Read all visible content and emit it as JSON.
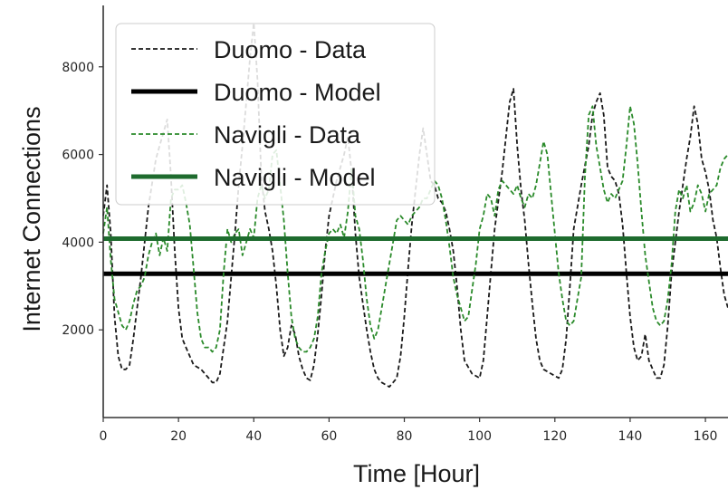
{
  "chart_data": {
    "type": "line",
    "xlabel": "Time [Hour]",
    "ylabel": "Internet Connections",
    "xlim": [
      0,
      166
    ],
    "ylim": [
      0,
      9400
    ],
    "xticks": [
      0,
      20,
      40,
      60,
      80,
      100,
      120,
      140,
      160
    ],
    "yticks": [
      2000,
      4000,
      6000,
      8000
    ],
    "grid": false,
    "legend_position": "top-left",
    "colors": {
      "duomo": "#1a1a1a",
      "navigli": "#2a8a2a",
      "navigli_model": "#1e6b2e"
    },
    "series": [
      {
        "name": "Duomo - Data",
        "style": "dashed",
        "color": "#1a1a1a",
        "points": [
          [
            0,
            4600
          ],
          [
            1,
            5300
          ],
          [
            2,
            4200
          ],
          [
            3,
            2300
          ],
          [
            4,
            1400
          ],
          [
            5,
            1100
          ],
          [
            6,
            1100
          ],
          [
            7,
            1200
          ],
          [
            8,
            1800
          ],
          [
            10,
            3200
          ],
          [
            12,
            4800
          ],
          [
            14,
            5900
          ],
          [
            15,
            6200
          ],
          [
            17,
            6800
          ],
          [
            18,
            5500
          ],
          [
            19,
            3800
          ],
          [
            20,
            2500
          ],
          [
            21,
            1800
          ],
          [
            22,
            1600
          ],
          [
            24,
            1200
          ],
          [
            26,
            1100
          ],
          [
            28,
            900
          ],
          [
            29,
            800
          ],
          [
            30,
            800
          ],
          [
            31,
            1000
          ],
          [
            33,
            2200
          ],
          [
            34,
            3200
          ],
          [
            35,
            4200
          ],
          [
            36,
            5300
          ],
          [
            37,
            6200
          ],
          [
            38,
            7200
          ],
          [
            39,
            8200
          ],
          [
            40,
            9000
          ],
          [
            41,
            7700
          ],
          [
            42,
            5500
          ],
          [
            43,
            4700
          ],
          [
            44,
            4300
          ],
          [
            45,
            3800
          ],
          [
            46,
            3000
          ],
          [
            47,
            2000
          ],
          [
            48,
            1400
          ],
          [
            49,
            1600
          ],
          [
            50,
            2100
          ],
          [
            51,
            1900
          ],
          [
            52,
            1400
          ],
          [
            53,
            1100
          ],
          [
            54,
            900
          ],
          [
            55,
            850
          ],
          [
            56,
            1200
          ],
          [
            57,
            1900
          ],
          [
            58,
            2800
          ],
          [
            59,
            3800
          ],
          [
            60,
            4600
          ],
          [
            62,
            5400
          ],
          [
            64,
            6000
          ],
          [
            65,
            6400
          ],
          [
            66,
            5600
          ],
          [
            67,
            4200
          ],
          [
            68,
            3200
          ],
          [
            69,
            2600
          ],
          [
            70,
            2000
          ],
          [
            71,
            1500
          ],
          [
            72,
            1100
          ],
          [
            73,
            900
          ],
          [
            74,
            800
          ],
          [
            76,
            700
          ],
          [
            77,
            800
          ],
          [
            78,
            900
          ],
          [
            79,
            1400
          ],
          [
            80,
            2300
          ],
          [
            81,
            3400
          ],
          [
            82,
            4400
          ],
          [
            83,
            5200
          ],
          [
            84,
            6000
          ],
          [
            85,
            6600
          ],
          [
            86,
            6000
          ],
          [
            87,
            5400
          ],
          [
            88,
            5300
          ],
          [
            89,
            5000
          ],
          [
            90,
            4900
          ],
          [
            91,
            4700
          ],
          [
            92,
            4300
          ],
          [
            93,
            3800
          ],
          [
            94,
            3000
          ],
          [
            95,
            2000
          ],
          [
            96,
            1300
          ],
          [
            98,
            1000
          ],
          [
            100,
            900
          ],
          [
            101,
            1300
          ],
          [
            102,
            2300
          ],
          [
            103,
            3300
          ],
          [
            104,
            4300
          ],
          [
            106,
            5600
          ],
          [
            108,
            7200
          ],
          [
            109,
            7500
          ],
          [
            110,
            6200
          ],
          [
            111,
            5200
          ],
          [
            112,
            4500
          ],
          [
            113,
            3500
          ],
          [
            114,
            2600
          ],
          [
            115,
            1800
          ],
          [
            116,
            1300
          ],
          [
            117,
            1100
          ],
          [
            119,
            1000
          ],
          [
            121,
            900
          ],
          [
            122,
            1100
          ],
          [
            123,
            1800
          ],
          [
            124,
            3000
          ],
          [
            125,
            4300
          ],
          [
            127,
            5300
          ],
          [
            129,
            6200
          ],
          [
            130,
            6900
          ],
          [
            131,
            7200
          ],
          [
            132,
            7400
          ],
          [
            133,
            6900
          ],
          [
            134,
            5700
          ],
          [
            135,
            5500
          ],
          [
            136,
            5400
          ],
          [
            137,
            5100
          ],
          [
            138,
            4400
          ],
          [
            139,
            3300
          ],
          [
            140,
            2300
          ],
          [
            141,
            1600
          ],
          [
            142,
            1300
          ],
          [
            143,
            1400
          ],
          [
            144,
            1900
          ],
          [
            145,
            1300
          ],
          [
            147,
            900
          ],
          [
            148,
            900
          ],
          [
            149,
            1200
          ],
          [
            150,
            2100
          ],
          [
            151,
            3300
          ],
          [
            153,
            4700
          ],
          [
            155,
            5900
          ],
          [
            156,
            6400
          ],
          [
            157,
            7100
          ],
          [
            158,
            6700
          ],
          [
            159,
            5900
          ],
          [
            160,
            5600
          ],
          [
            161,
            5200
          ],
          [
            162,
            4500
          ],
          [
            163,
            4100
          ],
          [
            164,
            3400
          ],
          [
            165,
            2800
          ],
          [
            166,
            2500
          ]
        ]
      },
      {
        "name": "Duomo - Model",
        "style": "solid",
        "color": "#000000",
        "points": [
          [
            0,
            3280
          ],
          [
            166,
            3280
          ]
        ]
      },
      {
        "name": "Navigli - Data",
        "style": "dashed",
        "color": "#2a8a2a",
        "points": [
          [
            0,
            4200
          ],
          [
            1,
            4800
          ],
          [
            2,
            3600
          ],
          [
            3,
            2700
          ],
          [
            4,
            2400
          ],
          [
            5,
            2100
          ],
          [
            6,
            2000
          ],
          [
            7,
            2200
          ],
          [
            8,
            2600
          ],
          [
            9,
            2900
          ],
          [
            10,
            3000
          ],
          [
            11,
            3200
          ],
          [
            12,
            3700
          ],
          [
            13,
            4000
          ],
          [
            14,
            4200
          ],
          [
            15,
            3700
          ],
          [
            16,
            4100
          ],
          [
            17,
            3800
          ],
          [
            18,
            5000
          ],
          [
            19,
            5200
          ],
          [
            20,
            5200
          ],
          [
            21,
            5300
          ],
          [
            22,
            4900
          ],
          [
            23,
            4400
          ],
          [
            24,
            3400
          ],
          [
            25,
            2400
          ],
          [
            26,
            1800
          ],
          [
            27,
            1600
          ],
          [
            28,
            1600
          ],
          [
            29,
            1500
          ],
          [
            30,
            1600
          ],
          [
            31,
            2000
          ],
          [
            32,
            3300
          ],
          [
            33,
            4300
          ],
          [
            34,
            4000
          ],
          [
            35,
            4200
          ],
          [
            36,
            4300
          ],
          [
            37,
            3700
          ],
          [
            38,
            4000
          ],
          [
            39,
            4300
          ],
          [
            40,
            4100
          ],
          [
            41,
            5000
          ],
          [
            42,
            5300
          ],
          [
            43,
            5000
          ],
          [
            44,
            5200
          ],
          [
            45,
            6000
          ],
          [
            46,
            6100
          ],
          [
            47,
            5300
          ],
          [
            48,
            4500
          ],
          [
            49,
            3300
          ],
          [
            50,
            2300
          ],
          [
            51,
            1800
          ],
          [
            52,
            1600
          ],
          [
            53,
            1500
          ],
          [
            54,
            1500
          ],
          [
            55,
            1600
          ],
          [
            56,
            1800
          ],
          [
            57,
            2300
          ],
          [
            58,
            3300
          ],
          [
            59,
            3800
          ],
          [
            60,
            4200
          ],
          [
            61,
            4300
          ],
          [
            62,
            4200
          ],
          [
            63,
            4400
          ],
          [
            64,
            4100
          ],
          [
            65,
            4700
          ],
          [
            66,
            5700
          ],
          [
            67,
            4600
          ],
          [
            68,
            4300
          ],
          [
            69,
            3600
          ],
          [
            70,
            2700
          ],
          [
            71,
            2100
          ],
          [
            72,
            1800
          ],
          [
            73,
            2000
          ],
          [
            74,
            2500
          ],
          [
            75,
            3000
          ],
          [
            76,
            3500
          ],
          [
            77,
            4000
          ],
          [
            78,
            4500
          ],
          [
            79,
            4600
          ],
          [
            80,
            4500
          ],
          [
            81,
            4400
          ],
          [
            82,
            4600
          ],
          [
            83,
            4700
          ],
          [
            84,
            4800
          ],
          [
            85,
            5000
          ],
          [
            86,
            5000
          ],
          [
            87,
            5200
          ],
          [
            88,
            5400
          ],
          [
            89,
            5300
          ],
          [
            90,
            5000
          ],
          [
            91,
            4500
          ],
          [
            92,
            3900
          ],
          [
            93,
            3200
          ],
          [
            94,
            2800
          ],
          [
            95,
            2500
          ],
          [
            96,
            2200
          ],
          [
            97,
            2300
          ],
          [
            98,
            2900
          ],
          [
            99,
            3500
          ],
          [
            100,
            4300
          ],
          [
            101,
            4600
          ],
          [
            102,
            5100
          ],
          [
            103,
            5000
          ],
          [
            104,
            4600
          ],
          [
            105,
            5200
          ],
          [
            106,
            5400
          ],
          [
            107,
            5300
          ],
          [
            108,
            5200
          ],
          [
            109,
            5100
          ],
          [
            110,
            5300
          ],
          [
            111,
            5000
          ],
          [
            112,
            4800
          ],
          [
            113,
            5100
          ],
          [
            114,
            5000
          ],
          [
            115,
            5300
          ],
          [
            116,
            5800
          ],
          [
            117,
            6300
          ],
          [
            118,
            6000
          ],
          [
            119,
            5100
          ],
          [
            120,
            4200
          ],
          [
            121,
            3300
          ],
          [
            122,
            2700
          ],
          [
            123,
            2200
          ],
          [
            124,
            2100
          ],
          [
            125,
            2200
          ],
          [
            126,
            2700
          ],
          [
            127,
            3200
          ],
          [
            128,
            5500
          ],
          [
            129,
            6900
          ],
          [
            130,
            7100
          ],
          [
            131,
            6200
          ],
          [
            132,
            5700
          ],
          [
            133,
            5200
          ],
          [
            134,
            4900
          ],
          [
            135,
            5100
          ],
          [
            136,
            5000
          ],
          [
            137,
            5200
          ],
          [
            138,
            5400
          ],
          [
            139,
            6200
          ],
          [
            140,
            7100
          ],
          [
            141,
            6700
          ],
          [
            142,
            5800
          ],
          [
            143,
            4700
          ],
          [
            144,
            3700
          ],
          [
            145,
            3100
          ],
          [
            146,
            2500
          ],
          [
            147,
            2200
          ],
          [
            148,
            2100
          ],
          [
            149,
            2200
          ],
          [
            150,
            2700
          ],
          [
            151,
            3500
          ],
          [
            152,
            4700
          ],
          [
            153,
            5200
          ],
          [
            154,
            5000
          ],
          [
            155,
            5300
          ],
          [
            156,
            4700
          ],
          [
            157,
            4900
          ],
          [
            158,
            5300
          ],
          [
            159,
            5100
          ],
          [
            160,
            4700
          ],
          [
            161,
            5100
          ],
          [
            162,
            5200
          ],
          [
            163,
            5300
          ],
          [
            164,
            5700
          ],
          [
            165,
            5900
          ],
          [
            166,
            6000
          ]
        ]
      },
      {
        "name": "Navigli - Model",
        "style": "solid",
        "color": "#1e6b2e",
        "points": [
          [
            0,
            4080
          ],
          [
            166,
            4080
          ]
        ]
      }
    ]
  }
}
